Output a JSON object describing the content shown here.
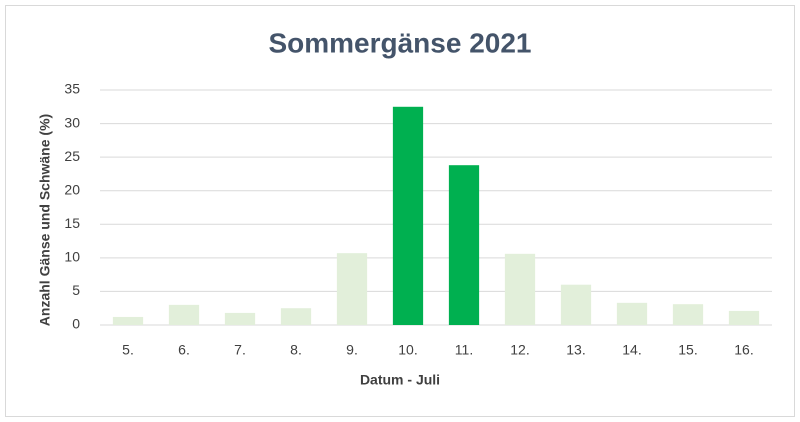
{
  "chart_data": {
    "type": "bar",
    "title": "Sommergänse 2021",
    "x_label": "Datum - Juli",
    "y_label": "Anzahl Gänse und Schwäne (%)",
    "categories": [
      "5.",
      "6.",
      "7.",
      "8.",
      "9.",
      "10.",
      "11.",
      "12.",
      "13.",
      "14.",
      "15.",
      "16."
    ],
    "values": [
      1.2,
      3.0,
      1.8,
      2.5,
      10.7,
      32.5,
      23.8,
      10.6,
      6.0,
      3.3,
      3.1,
      2.1
    ],
    "colors": [
      "#e2efda",
      "#e2efda",
      "#e2efda",
      "#e2efda",
      "#e2efda",
      "#00b050",
      "#00b050",
      "#e2efda",
      "#e2efda",
      "#e2efda",
      "#e2efda",
      "#e2efda"
    ],
    "ylim": [
      0,
      35
    ],
    "yticks": [
      0,
      5,
      10,
      15,
      20,
      25,
      30,
      35
    ],
    "grid": true
  }
}
